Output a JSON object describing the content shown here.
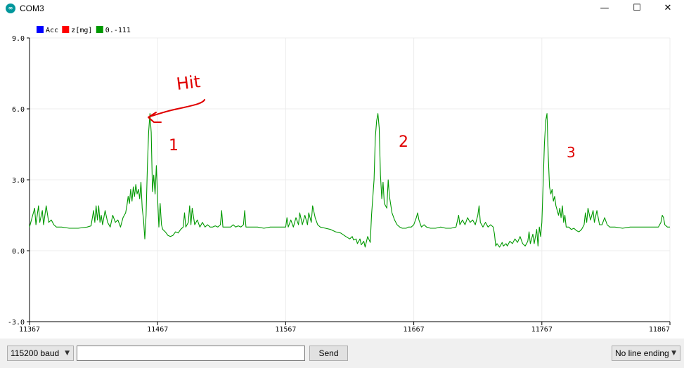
{
  "window": {
    "title": "COM3",
    "app_icon": "arduino-icon",
    "minimize_glyph": "—",
    "maximize_glyph": "☐",
    "close_glyph": "✕"
  },
  "chart_data": {
    "type": "line",
    "legend": [
      {
        "label": "Acc",
        "color": "#0000ff"
      },
      {
        "label": "z[mg]",
        "color": "#ff0000"
      },
      {
        "label": "0.-111",
        "color": "#009900"
      }
    ],
    "legend_position": "top-left",
    "ylim": [
      -3.0,
      9.0
    ],
    "yticks": [
      "9.0",
      "6.0",
      "3.0",
      "0.0",
      "-3.0"
    ],
    "ytick_values": [
      9,
      6,
      3,
      0,
      -3
    ],
    "xlim": [
      11367,
      11867
    ],
    "xticks": [
      "11367",
      "11467",
      "11567",
      "11667",
      "11767",
      "11867"
    ],
    "xtick_values": [
      11367,
      11467,
      11567,
      11667,
      11767,
      11867
    ],
    "grid": true,
    "series": [
      {
        "color": "#009900",
        "points": [
          [
            11367,
            1.0
          ],
          [
            11369,
            1.4
          ],
          [
            11371,
            1.8
          ],
          [
            11372,
            1.1
          ],
          [
            11374,
            1.9
          ],
          [
            11375,
            1.2
          ],
          [
            11377,
            1.7
          ],
          [
            11378,
            1.1
          ],
          [
            11380,
            1.9
          ],
          [
            11382,
            1.2
          ],
          [
            11384,
            1.3
          ],
          [
            11386,
            1.1
          ],
          [
            11388,
            1.0
          ],
          [
            11392,
            1.0
          ],
          [
            11398,
            0.95
          ],
          [
            11405,
            0.95
          ],
          [
            11412,
            1.0
          ],
          [
            11415,
            1.05
          ],
          [
            11417,
            1.7
          ],
          [
            11418,
            1.2
          ],
          [
            11419,
            1.9
          ],
          [
            11420,
            1.3
          ],
          [
            11421,
            1.9
          ],
          [
            11422,
            1.2
          ],
          [
            11423,
            1.5
          ],
          [
            11424,
            1.1
          ],
          [
            11426,
            1.7
          ],
          [
            11428,
            1.2
          ],
          [
            11430,
            1.0
          ],
          [
            11432,
            1.5
          ],
          [
            11434,
            1.2
          ],
          [
            11436,
            1.3
          ],
          [
            11438,
            1.0
          ],
          [
            11440,
            1.4
          ],
          [
            11442,
            1.6
          ],
          [
            11443,
            1.9
          ],
          [
            11444,
            2.3
          ],
          [
            11445,
            2.0
          ],
          [
            11446,
            2.6
          ],
          [
            11447,
            2.1
          ],
          [
            11448,
            2.7
          ],
          [
            11449,
            2.3
          ],
          [
            11450,
            2.8
          ],
          [
            11451,
            2.4
          ],
          [
            11452,
            2.6
          ],
          [
            11453,
            2.2
          ],
          [
            11454,
            2.9
          ],
          [
            11455,
            1.8
          ],
          [
            11456,
            1.3
          ],
          [
            11457,
            0.5
          ],
          [
            11458,
            1.5
          ],
          [
            11459,
            3.5
          ],
          [
            11460,
            5.0
          ],
          [
            11461,
            5.8
          ],
          [
            11462,
            5.0
          ],
          [
            11463,
            2.5
          ],
          [
            11464,
            3.2
          ],
          [
            11465,
            2.4
          ],
          [
            11466,
            3.6
          ],
          [
            11467,
            2.2
          ],
          [
            11468,
            1.0
          ],
          [
            11469,
            2.0
          ],
          [
            11470,
            1.1
          ],
          [
            11471,
            0.9
          ],
          [
            11473,
            0.8
          ],
          [
            11475,
            0.65
          ],
          [
            11477,
            0.6
          ],
          [
            11479,
            0.65
          ],
          [
            11481,
            0.8
          ],
          [
            11483,
            0.75
          ],
          [
            11485,
            0.9
          ],
          [
            11487,
            1.0
          ],
          [
            11488,
            1.6
          ],
          [
            11489,
            1.0
          ],
          [
            11491,
            1.2
          ],
          [
            11492,
            1.9
          ],
          [
            11493,
            1.1
          ],
          [
            11494,
            1.8
          ],
          [
            11496,
            1.1
          ],
          [
            11498,
            1.3
          ],
          [
            11500,
            1.0
          ],
          [
            11502,
            1.2
          ],
          [
            11504,
            1.0
          ],
          [
            11506,
            1.1
          ],
          [
            11508,
            1.0
          ],
          [
            11510,
            1.0
          ],
          [
            11512,
            1.05
          ],
          [
            11514,
            1.0
          ],
          [
            11516,
            1.1
          ],
          [
            11517,
            1.7
          ],
          [
            11518,
            1.0
          ],
          [
            11520,
            1.0
          ],
          [
            11524,
            1.0
          ],
          [
            11526,
            1.1
          ],
          [
            11528,
            1.0
          ],
          [
            11530,
            1.05
          ],
          [
            11532,
            1.0
          ],
          [
            11534,
            1.1
          ],
          [
            11535,
            1.7
          ],
          [
            11536,
            1.0
          ],
          [
            11540,
            1.0
          ],
          [
            11545,
            1.0
          ],
          [
            11550,
            0.95
          ],
          [
            11555,
            1.0
          ],
          [
            11560,
            1.0
          ],
          [
            11565,
            1.0
          ],
          [
            11567,
            1.0
          ],
          [
            11568,
            1.4
          ],
          [
            11569,
            1.0
          ],
          [
            11571,
            1.3
          ],
          [
            11573,
            1.0
          ],
          [
            11575,
            1.4
          ],
          [
            11577,
            1.1
          ],
          [
            11578,
            1.6
          ],
          [
            11580,
            1.1
          ],
          [
            11582,
            1.5
          ],
          [
            11584,
            1.1
          ],
          [
            11585,
            1.6
          ],
          [
            11587,
            1.2
          ],
          [
            11588,
            1.9
          ],
          [
            11590,
            1.4
          ],
          [
            11592,
            1.1
          ],
          [
            11594,
            1.0
          ],
          [
            11598,
            0.95
          ],
          [
            11602,
            0.9
          ],
          [
            11606,
            0.8
          ],
          [
            11610,
            0.75
          ],
          [
            11614,
            0.6
          ],
          [
            11617,
            0.5
          ],
          [
            11619,
            0.6
          ],
          [
            11620,
            0.45
          ],
          [
            11622,
            0.5
          ],
          [
            11623,
            0.3
          ],
          [
            11625,
            0.5
          ],
          [
            11626,
            0.25
          ],
          [
            11628,
            0.4
          ],
          [
            11629,
            0.15
          ],
          [
            11631,
            0.6
          ],
          [
            11633,
            0.35
          ],
          [
            11634,
            1.5
          ],
          [
            11636,
            3.0
          ],
          [
            11637,
            4.8
          ],
          [
            11638,
            5.5
          ],
          [
            11639,
            5.8
          ],
          [
            11640,
            5.2
          ],
          [
            11641,
            3.2
          ],
          [
            11642,
            2.2
          ],
          [
            11643,
            2.9
          ],
          [
            11644,
            2.0
          ],
          [
            11646,
            1.8
          ],
          [
            11647,
            3.0
          ],
          [
            11648,
            2.3
          ],
          [
            11650,
            1.6
          ],
          [
            11652,
            1.3
          ],
          [
            11654,
            1.1
          ],
          [
            11656,
            1.0
          ],
          [
            11658,
            0.95
          ],
          [
            11661,
            0.95
          ],
          [
            11663,
            1.0
          ],
          [
            11665,
            1.0
          ],
          [
            11667,
            1.1
          ],
          [
            11669,
            1.4
          ],
          [
            11670,
            1.6
          ],
          [
            11671,
            1.3
          ],
          [
            11673,
            1.0
          ],
          [
            11675,
            1.1
          ],
          [
            11677,
            1.0
          ],
          [
            11680,
            0.95
          ],
          [
            11684,
            0.95
          ],
          [
            11688,
            1.0
          ],
          [
            11692,
            0.95
          ],
          [
            11696,
            0.95
          ],
          [
            11700,
            1.0
          ],
          [
            11702,
            1.5
          ],
          [
            11703,
            1.1
          ],
          [
            11705,
            1.3
          ],
          [
            11707,
            1.1
          ],
          [
            11709,
            1.4
          ],
          [
            11711,
            1.2
          ],
          [
            11713,
            1.3
          ],
          [
            11715,
            1.1
          ],
          [
            11717,
            1.5
          ],
          [
            11718,
            1.9
          ],
          [
            11719,
            1.2
          ],
          [
            11721,
            1.0
          ],
          [
            11723,
            1.2
          ],
          [
            11725,
            1.0
          ],
          [
            11727,
            1.1
          ],
          [
            11729,
            1.0
          ],
          [
            11730,
            0.7
          ],
          [
            11731,
            0.2
          ],
          [
            11732,
            0.3
          ],
          [
            11734,
            0.15
          ],
          [
            11736,
            0.35
          ],
          [
            11737,
            0.2
          ],
          [
            11739,
            0.3
          ],
          [
            11740,
            0.2
          ],
          [
            11742,
            0.4
          ],
          [
            11744,
            0.3
          ],
          [
            11746,
            0.5
          ],
          [
            11748,
            0.35
          ],
          [
            11750,
            0.6
          ],
          [
            11752,
            0.3
          ],
          [
            11754,
            0.2
          ],
          [
            11756,
            0.4
          ],
          [
            11757,
            0.8
          ],
          [
            11758,
            0.3
          ],
          [
            11760,
            0.7
          ],
          [
            11761,
            0.3
          ],
          [
            11763,
            0.9
          ],
          [
            11764,
            0.2
          ],
          [
            11765,
            1.0
          ],
          [
            11766,
            0.6
          ],
          [
            11767,
            1.2
          ],
          [
            11768,
            2.8
          ],
          [
            11769,
            4.5
          ],
          [
            11770,
            5.5
          ],
          [
            11771,
            5.8
          ],
          [
            11772,
            4.0
          ],
          [
            11773,
            2.7
          ],
          [
            11774,
            2.4
          ],
          [
            11775,
            2.6
          ],
          [
            11776,
            2.1
          ],
          [
            11777,
            2.3
          ],
          [
            11778,
            1.9
          ],
          [
            11779,
            1.7
          ],
          [
            11780,
            1.5
          ],
          [
            11781,
            1.8
          ],
          [
            11782,
            1.4
          ],
          [
            11783,
            1.9
          ],
          [
            11784,
            1.2
          ],
          [
            11785,
            1.5
          ],
          [
            11786,
            1.0
          ],
          [
            11788,
            1.0
          ],
          [
            11790,
            0.9
          ],
          [
            11792,
            0.95
          ],
          [
            11794,
            0.85
          ],
          [
            11796,
            0.8
          ],
          [
            11798,
            0.9
          ],
          [
            11800,
            1.1
          ],
          [
            11801,
            1.6
          ],
          [
            11802,
            1.2
          ],
          [
            11803,
            1.8
          ],
          [
            11805,
            1.3
          ],
          [
            11807,
            1.7
          ],
          [
            11808,
            1.2
          ],
          [
            11810,
            1.7
          ],
          [
            11812,
            1.1
          ],
          [
            11814,
            1.1
          ],
          [
            11816,
            1.4
          ],
          [
            11818,
            1.1
          ],
          [
            11820,
            1.0
          ],
          [
            11824,
            1.0
          ],
          [
            11830,
            0.95
          ],
          [
            11836,
            1.0
          ],
          [
            11842,
            1.0
          ],
          [
            11848,
            1.0
          ],
          [
            11854,
            1.0
          ],
          [
            11858,
            1.0
          ],
          [
            11860,
            1.2
          ],
          [
            11861,
            1.5
          ],
          [
            11862,
            1.4
          ],
          [
            11863,
            1.1
          ],
          [
            11865,
            1.0
          ],
          [
            11867,
            1.0
          ]
        ]
      }
    ]
  },
  "annotations": {
    "hit_label": "Hit",
    "peak_labels": [
      "1",
      "2",
      "3"
    ]
  },
  "controls": {
    "baud": "115200 baud",
    "send_input_value": "",
    "send_label": "Send",
    "line_ending": "No line ending"
  }
}
